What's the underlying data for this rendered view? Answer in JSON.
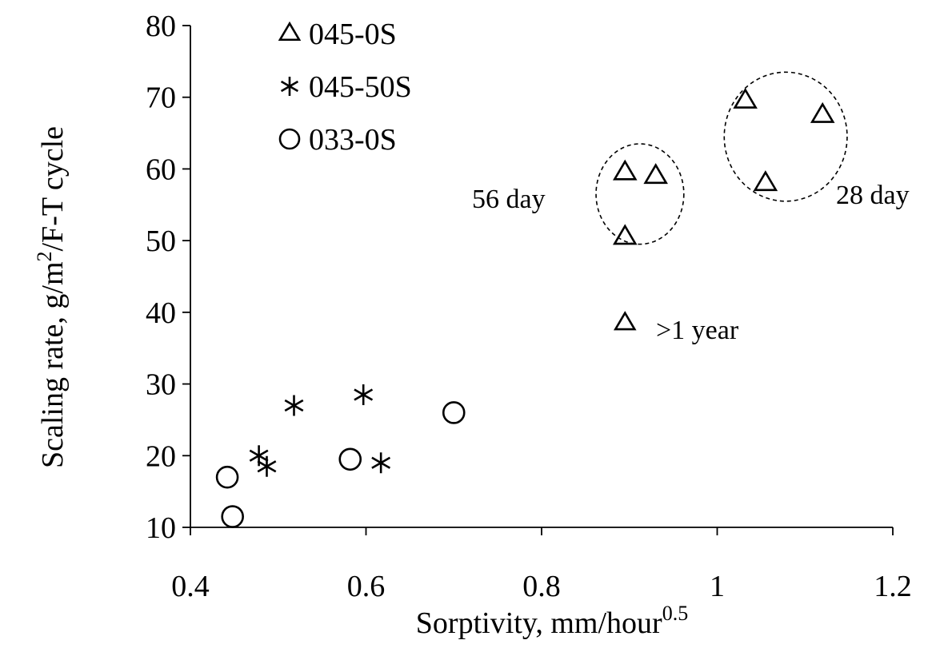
{
  "chart_data": {
    "type": "scatter",
    "title": "",
    "xlabel": "Sorptivity, mm/hour",
    "xlabel_sup": "0.5",
    "ylabel": "Scaling rate,  g/m",
    "ylabel_sup": "2",
    "ylabel_tail": "/F-T cycle",
    "xlim": [
      0.4,
      1.2
    ],
    "ylim": [
      10,
      80
    ],
    "xticks": [
      "0.4",
      "0.6",
      "0.8",
      "1",
      "1.2"
    ],
    "yticks": [
      "10",
      "20",
      "30",
      "40",
      "50",
      "60",
      "70",
      "80"
    ],
    "legend_position": "top-left",
    "series": [
      {
        "name": "045-0S",
        "marker": "triangle",
        "points": [
          {
            "x": 0.895,
            "y": 59.5
          },
          {
            "x": 0.93,
            "y": 59.0
          },
          {
            "x": 0.895,
            "y": 50.5
          },
          {
            "x": 1.032,
            "y": 69.5
          },
          {
            "x": 1.12,
            "y": 67.5
          },
          {
            "x": 1.055,
            "y": 58.0
          }
        ]
      },
      {
        "name": "045-50S",
        "marker": "asterisk",
        "points": [
          {
            "x": 0.478,
            "y": 20.0
          },
          {
            "x": 0.487,
            "y": 18.5
          },
          {
            "x": 0.518,
            "y": 27.0
          },
          {
            "x": 0.597,
            "y": 28.5
          },
          {
            "x": 0.617,
            "y": 19.0
          }
        ]
      },
      {
        "name": "033-0S",
        "marker": "circle",
        "points": [
          {
            "x": 0.442,
            "y": 17.0
          },
          {
            "x": 0.448,
            "y": 11.5
          },
          {
            "x": 0.582,
            "y": 19.5
          },
          {
            "x": 0.7,
            "y": 26.0
          }
        ]
      }
    ],
    "annotations": {
      "day56": "56 day",
      "day28": "28 day",
      "year_marker": "triangle",
      "year_label": ">1 year"
    },
    "groups": [
      {
        "label": "56 day",
        "cx": 0.912,
        "cy": 56.5,
        "rx": 0.05,
        "ry": 7.0
      },
      {
        "label": "28 day",
        "cx": 1.078,
        "cy": 64.5,
        "rx": 0.07,
        "ry": 9.0
      }
    ],
    "marker_labels": [
      {
        "marker": "triangle",
        "x": 0.895,
        "y": 38.5,
        "label": ">1 year"
      }
    ]
  }
}
